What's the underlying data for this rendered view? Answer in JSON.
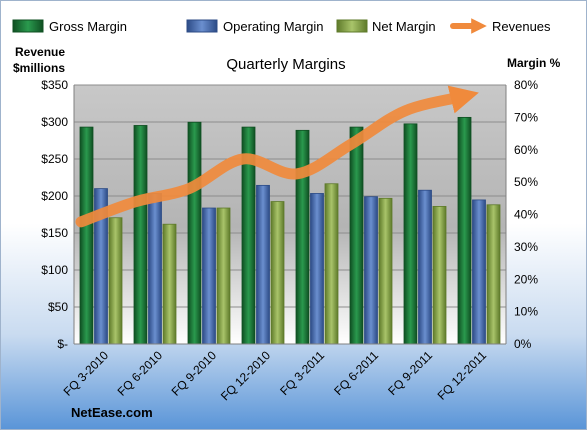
{
  "chart_data": {
    "type": "bar",
    "title": "Quarterly Margins",
    "categories": [
      "FQ 3-2010",
      "FQ 6-2010",
      "FQ 9-2010",
      "FQ 12-2010",
      "FQ 3-2011",
      "FQ 6-2011",
      "FQ 9-2011",
      "FQ 12-2011"
    ],
    "series": [
      {
        "name": "Gross Margin",
        "axis": "right",
        "color": "#1e7a3c",
        "values": [
          67,
          67.5,
          68.5,
          67,
          66,
          67,
          68,
          70
        ]
      },
      {
        "name": "Operating Margin",
        "axis": "right",
        "color": "#4a6fb3",
        "values": [
          48,
          46.5,
          42,
          49,
          46.5,
          45.5,
          47.5,
          44.5
        ]
      },
      {
        "name": "Net Margin",
        "axis": "right",
        "color": "#8aa94a",
        "values": [
          39,
          37,
          42,
          44,
          49.5,
          45,
          42.5,
          43
        ]
      }
    ],
    "line_series": {
      "name": "Revenues",
      "axis": "left",
      "color": "#f08a3c",
      "values": [
        165,
        192,
        210,
        250,
        230,
        270,
        315,
        335
      ]
    },
    "y_left": {
      "label_line1": "Revenue",
      "label_line2": "$millions",
      "ylim": [
        0,
        350
      ],
      "ticks": [
        0,
        50,
        100,
        150,
        200,
        250,
        300,
        350
      ],
      "tick_labels": [
        "$-",
        "$50",
        "$100",
        "$150",
        "$200",
        "$250",
        "$300",
        "$350"
      ]
    },
    "y_right": {
      "label": "Margin %",
      "ylim": [
        0,
        80
      ],
      "ticks": [
        0,
        10,
        20,
        30,
        40,
        50,
        60,
        70,
        80
      ],
      "tick_labels": [
        "0%",
        "10%",
        "20%",
        "30%",
        "40%",
        "50%",
        "60%",
        "70%",
        "80%"
      ]
    },
    "legend_position": "top",
    "plot_background": "gray gradient",
    "source": "NetEase.com"
  }
}
